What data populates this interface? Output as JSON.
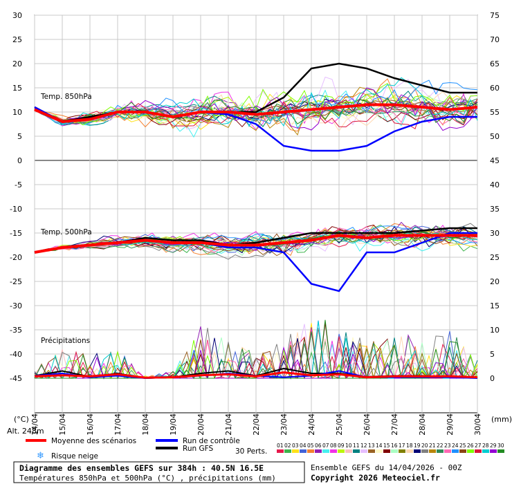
{
  "chart_data": {
    "type": "line",
    "title": "Diagramme des ensembles GEFS sur 384h : 40.5N 16.5E",
    "subtitle": "Températures 850hPa et 500hPa (°C) , précipitations (mm)",
    "panel_labels": {
      "t850": "Temp. 850hPa",
      "t500": "Temp. 500hPa",
      "precip": "Précipitations"
    },
    "left_unit": "(°C)",
    "right_unit": "(mm)",
    "altitude": "Alt. 248m",
    "left_ticks": [
      "30",
      "25",
      "20",
      "15",
      "10",
      "5",
      "0",
      "-5",
      "-10",
      "-15",
      "-20",
      "-25",
      "-30",
      "-35",
      "-40",
      "-45"
    ],
    "right_ticks": [
      "75",
      "70",
      "65",
      "60",
      "55",
      "50",
      "45",
      "40",
      "35",
      "30",
      "25",
      "20",
      "15",
      "10",
      "5",
      "0"
    ],
    "x_dates": [
      "14/04",
      "15/04",
      "16/04",
      "17/04",
      "18/04",
      "19/04",
      "20/04",
      "21/04",
      "22/04",
      "23/04",
      "24/04",
      "25/04",
      "26/04",
      "27/04",
      "28/04",
      "29/04",
      "30/04"
    ],
    "grid": true,
    "legend": {
      "mean": "Moyenne des scénarios",
      "control": "Run de contrôle",
      "gfs": "Run GFS",
      "snow": "Risque neige",
      "perts": "30 Perts.",
      "pert_numbers": [
        "01",
        "02",
        "03",
        "04",
        "05",
        "06",
        "07",
        "08",
        "09",
        "10",
        "11",
        "12",
        "13",
        "14",
        "15",
        "16",
        "17",
        "18",
        "19",
        "20",
        "21",
        "22",
        "23",
        "24",
        "25",
        "26",
        "27",
        "28",
        "29",
        "30"
      ],
      "pert_colors": [
        "#e6194b",
        "#3cb44b",
        "#ffe119",
        "#4363d8",
        "#f58231",
        "#911eb4",
        "#46f0f0",
        "#f032e6",
        "#bcf60c",
        "#fabebe",
        "#008080",
        "#e6beff",
        "#9a6324",
        "#fffac8",
        "#800000",
        "#aaffc3",
        "#808000",
        "#ffd8b1",
        "#000075",
        "#808080",
        "#b8860b",
        "#2e8b57",
        "#ff69b4",
        "#1e90ff",
        "#8b4513",
        "#7fff00",
        "#dc143c",
        "#00ced1",
        "#9400d3",
        "#228b22"
      ]
    },
    "colors": {
      "mean": "#ff0000",
      "control": "#0000ff",
      "gfs": "#000000"
    },
    "footer_left": "Ensemble GEFS du 14/04/2026 - 00Z",
    "footer_right": "Copyright 2026 Meteociel.fr",
    "t850": {
      "day": [
        0,
        1,
        2,
        3,
        4,
        5,
        6,
        7,
        8,
        9,
        10,
        11,
        12,
        13,
        14,
        15,
        16
      ],
      "mean": [
        10.5,
        8,
        8.5,
        10,
        10,
        9,
        10,
        10,
        9.5,
        10,
        10.5,
        11,
        11.5,
        11.5,
        11,
        10.5,
        11
      ],
      "control": [
        11,
        8,
        8.5,
        10,
        10,
        9,
        10,
        9.5,
        7.5,
        3,
        2,
        2,
        3,
        6,
        8,
        9,
        9
      ],
      "gfs": [
        11,
        8,
        9,
        10,
        10,
        9,
        10,
        10,
        10,
        13,
        19,
        20,
        19,
        17,
        15.5,
        14,
        14
      ]
    },
    "t500": {
      "day": [
        0,
        1,
        2,
        3,
        4,
        5,
        6,
        7,
        8,
        9,
        10,
        11,
        12,
        13,
        14,
        15,
        16
      ],
      "mean": [
        -19,
        -18,
        -17.5,
        -17,
        -16.5,
        -17,
        -17,
        -17.5,
        -17.5,
        -17,
        -16.5,
        -15.5,
        -16,
        -15.5,
        -15.5,
        -15.5,
        -15.5
      ],
      "control": [
        -19,
        -18,
        -17.5,
        -17,
        -16.5,
        -17,
        -17,
        -18,
        -18,
        -19,
        -25.5,
        -27,
        -19,
        -19,
        -17,
        -15,
        -15
      ],
      "gfs": [
        -19,
        -18,
        -17.5,
        -17,
        -16,
        -16.5,
        -16.5,
        -17.5,
        -17,
        -16,
        -15,
        -15,
        -15,
        -15,
        -14.5,
        -14,
        -14
      ]
    },
    "precip": {
      "day": [
        0,
        1,
        2,
        3,
        4,
        5,
        6,
        7,
        8,
        9,
        10,
        11,
        12,
        13,
        14,
        15,
        16
      ],
      "mean": [
        0.4,
        0.6,
        0.4,
        0.8,
        0.1,
        0.2,
        0.6,
        0.8,
        0.4,
        1.2,
        0.6,
        0.8,
        0.2,
        0.4,
        0.4,
        0.4,
        0.2
      ],
      "control": [
        0.5,
        1,
        0.2,
        0.5,
        0,
        0.2,
        0.5,
        1,
        0.5,
        0.2,
        0.5,
        1.5,
        0.2,
        0.2,
        0.2,
        0.2,
        0
      ],
      "gfs": [
        0.5,
        1.5,
        0.3,
        1,
        0,
        0.2,
        1,
        1.5,
        0.5,
        2,
        1,
        1,
        0.3,
        0.5,
        0.5,
        0.3,
        0.2
      ],
      "max": [
        2,
        6,
        5,
        6,
        0.5,
        1.5,
        12,
        8,
        5,
        8,
        13,
        12,
        8,
        10,
        8,
        10,
        4
      ]
    }
  }
}
